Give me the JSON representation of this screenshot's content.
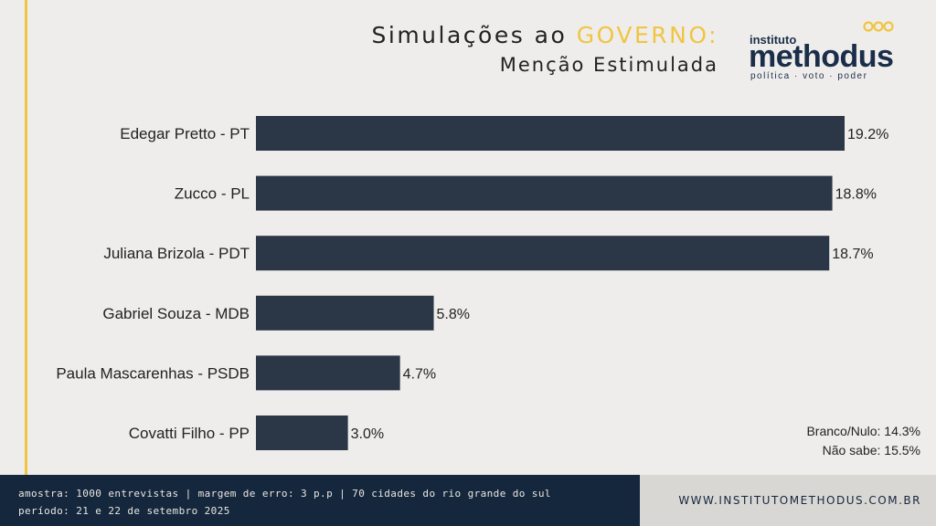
{
  "header": {
    "title_part1": "Simulações ao ",
    "title_accent": "GOVERNO:",
    "subtitle": "Menção Estimulada"
  },
  "logo": {
    "top": "instituto",
    "main": "methodus",
    "sub": "política · voto · poder"
  },
  "chart_data": {
    "type": "bar",
    "orientation": "horizontal",
    "categories": [
      "Edegar Pretto - PT",
      "Zucco - PL",
      "Juliana Brizola - PDT",
      "Gabriel Souza - MDB",
      "Paula Mascarenhas - PSDB",
      "Covatti Filho - PP"
    ],
    "values": [
      19.2,
      18.8,
      18.7,
      5.8,
      4.7,
      3.0
    ],
    "value_labels": [
      "19.2%",
      "18.8%",
      "18.7%",
      "5.8%",
      "4.7%",
      "3.0%"
    ],
    "xlim": [
      0,
      19.2
    ],
    "grid": false,
    "bar_color": "#2b3647"
  },
  "extra": {
    "blank_null": "Branco/Nulo: 14.3%",
    "dont_know": "Não sabe: 15.5%"
  },
  "footer": {
    "line1": "amostra: 1000 entrevistas | margem de erro: 3 p.p | 70 cidades do rio grande do sul",
    "line2": "período: 21 e 22 de setembro 2025",
    "url": "WWW.INSTITUTOMETHODUS.COM.BR"
  },
  "colors": {
    "accent": "#f0c542",
    "navy": "#15273d",
    "bar": "#2b3647",
    "background": "#efedeb"
  }
}
